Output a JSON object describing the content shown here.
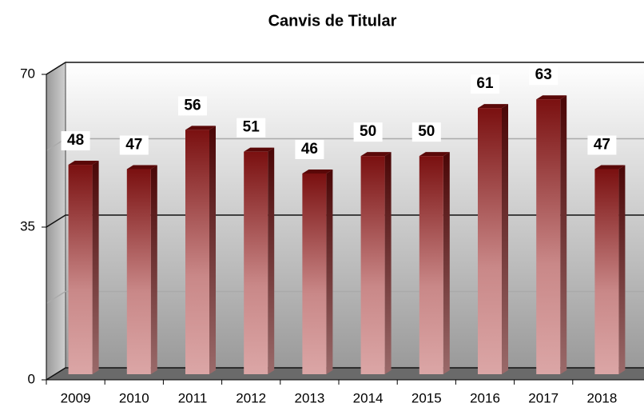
{
  "chart_data": {
    "type": "bar",
    "title": "Canvis de Titular",
    "categories": [
      "2009",
      "2010",
      "2011",
      "2012",
      "2013",
      "2014",
      "2015",
      "2016",
      "2017",
      "2018"
    ],
    "values": [
      48,
      47,
      56,
      51,
      46,
      50,
      50,
      61,
      63,
      47
    ],
    "color": "#8b1a1a",
    "ylim": [
      0,
      70
    ],
    "yticks": [
      0,
      35,
      70
    ],
    "minor_yticks": [
      17.5,
      52.5
    ],
    "grid": true
  }
}
